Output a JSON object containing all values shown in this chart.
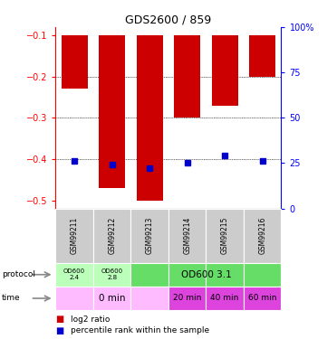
{
  "title": "GDS2600 / 859",
  "samples": [
    "GSM99211",
    "GSM99212",
    "GSM99213",
    "GSM99214",
    "GSM99215",
    "GSM99216"
  ],
  "log2_ratio": [
    -0.23,
    -0.47,
    -0.5,
    -0.3,
    -0.27,
    -0.2
  ],
  "log2_ratio_bottom": [
    -0.5,
    -0.5,
    -0.5,
    -0.5,
    -0.5,
    -0.5
  ],
  "percentile_rank": [
    26,
    24,
    22,
    25,
    29,
    26
  ],
  "ylim_left": [
    -0.52,
    -0.08
  ],
  "ylim_right": [
    0,
    100
  ],
  "yticks_left": [
    -0.5,
    -0.4,
    -0.3,
    -0.2,
    -0.1
  ],
  "yticks_right": [
    0,
    25,
    50,
    75,
    100
  ],
  "yticks_right_labels": [
    "0",
    "25",
    "50",
    "75",
    "100%"
  ],
  "dotted_lines": [
    -0.2,
    -0.3,
    -0.4
  ],
  "bar_color": "#cc0000",
  "percentile_color": "#0000cc",
  "protocol_colors_0": "#bbffbb",
  "protocol_colors_1": "#bbffbb",
  "protocol_colors_234": "#66dd66",
  "time_colors_012": "#ffbbff",
  "time_colors_345": "#dd44dd",
  "sample_bg_color": "#cccccc",
  "bar_width": 0.7,
  "legend_red_label": "log2 ratio",
  "legend_blue_label": "percentile rank within the sample",
  "figsize": [
    3.61,
    3.75
  ],
  "dpi": 100
}
